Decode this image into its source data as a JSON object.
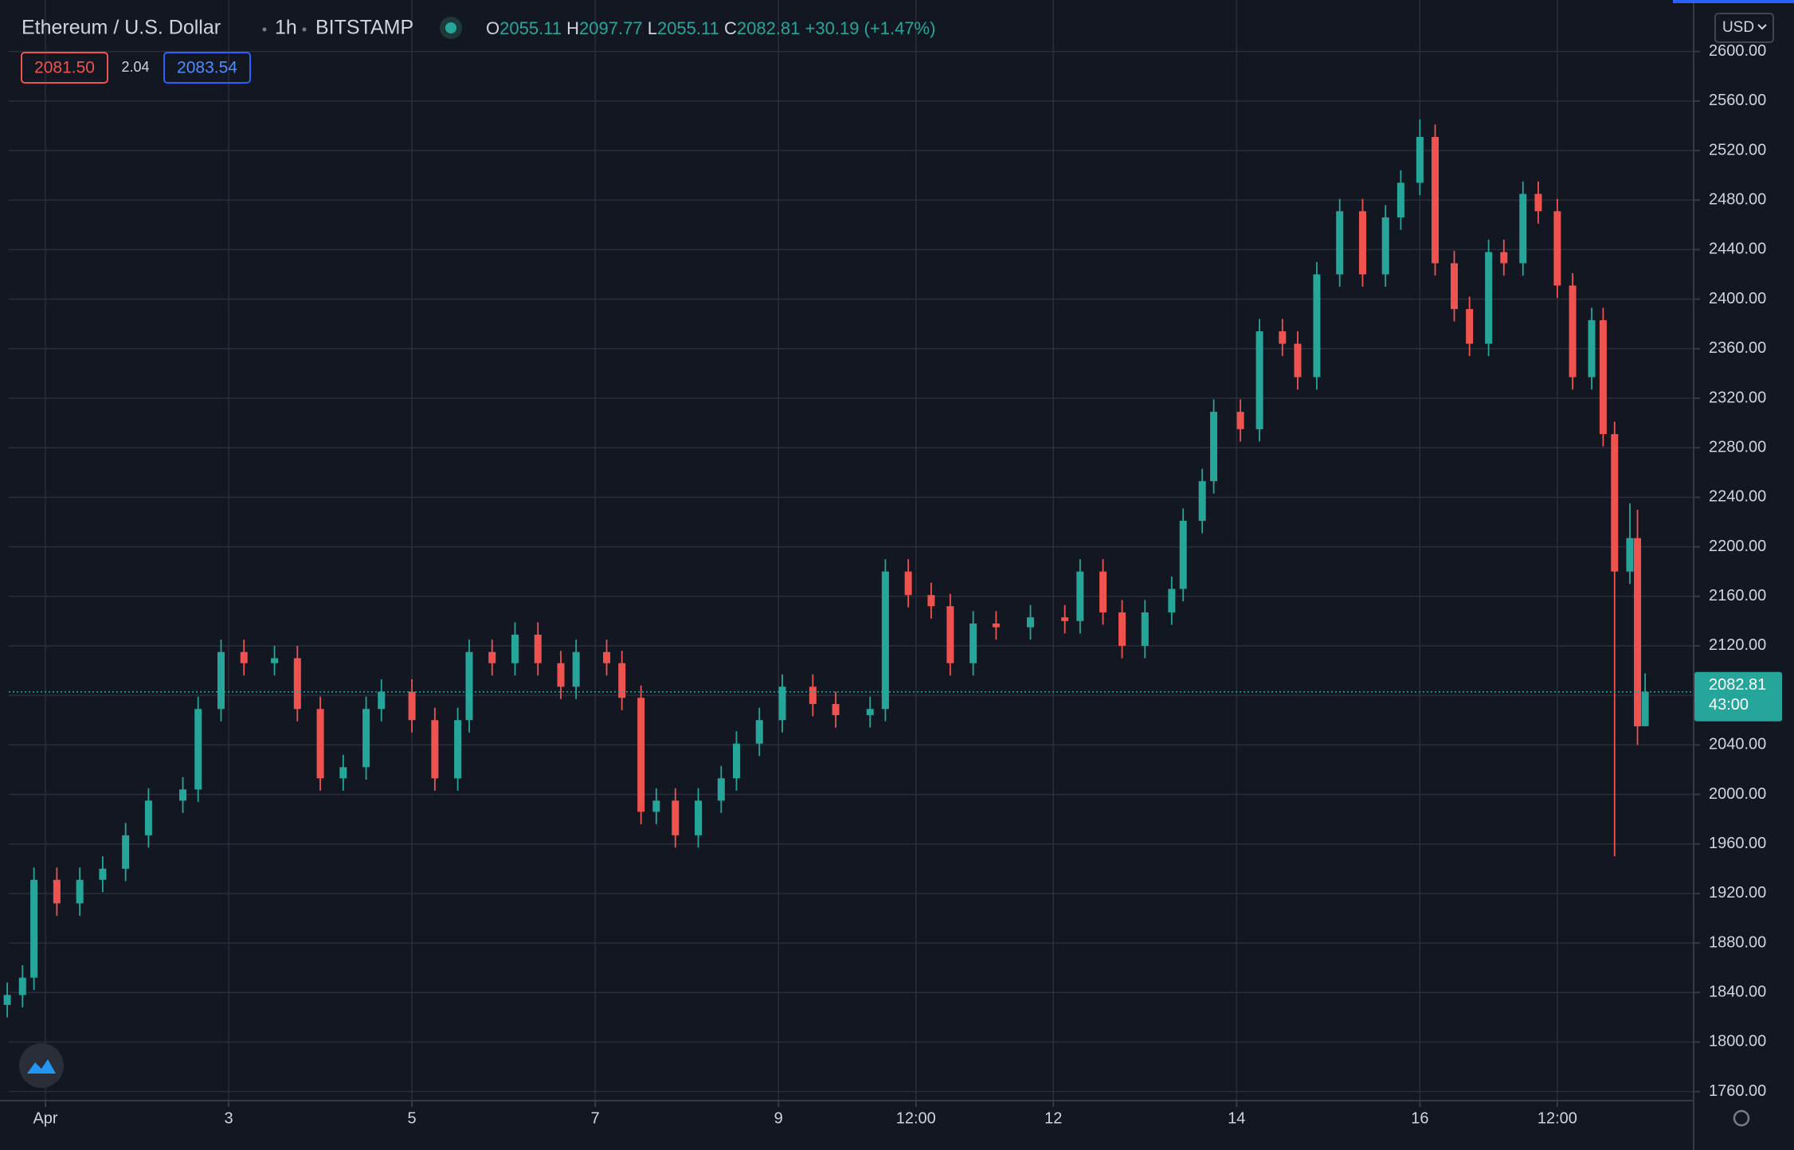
{
  "chart_data": {
    "type": "candlestick",
    "title": "Ethereum / U.S. Dollar",
    "interval": "1h",
    "exchange": "BITSTAMP",
    "ohlc_labels": [
      "O",
      "H",
      "L",
      "C"
    ],
    "change": "+30.19 (+1.47%)",
    "bid": "2081.50",
    "spread": "2.04",
    "ask": "2083.54",
    "countdown": "43:00",
    "currency": "USD",
    "up_color": "#26a69a",
    "down_color": "#ef5350",
    "grid": true,
    "x": [
      -10,
      -6,
      -3,
      3,
      9,
      15,
      21,
      27,
      36,
      40,
      46,
      52,
      60,
      66,
      72,
      78,
      84,
      88,
      96,
      102,
      108,
      111,
      117,
      123,
      129,
      135,
      139,
      147,
      151,
      156,
      160,
      165,
      171,
      177,
      181,
      187,
      193,
      201,
      207,
      216,
      220,
      226,
      232,
      237,
      243,
      249,
      258,
      267,
      271,
      277,
      282,
      288,
      295,
      298,
      303,
      306,
      313,
      318,
      324,
      328,
      333,
      339,
      345,
      351,
      355,
      360,
      364,
      369,
      373,
      378,
      382,
      387,
      391,
      396,
      400,
      405,
      408,
      411,
      415,
      417,
      419
    ],
    "open": [
      1830,
      1838,
      1852,
      1931,
      1912,
      1931,
      1940,
      1967,
      1995,
      2004,
      2069,
      2115,
      2106,
      2110,
      2069,
      2013,
      2022,
      2069,
      2083,
      2060,
      2013,
      2060,
      2115,
      2106,
      2129,
      2106,
      2087,
      2115,
      2106,
      2078,
      1986,
      1995,
      1967,
      1995,
      2013,
      2041,
      2060,
      2087,
      2073,
      2064,
      2069,
      2180,
      2161,
      2152,
      2106,
      2138,
      2135,
      2143,
      2140,
      2180,
      2147,
      2120,
      2147,
      2166,
      2221,
      2253,
      2309,
      2295,
      2374,
      2364,
      2337,
      2420,
      2471,
      2420,
      2466,
      2494,
      2531,
      2429,
      2392,
      2364,
      2438,
      2429,
      2485,
      2471,
      2411,
      2337,
      2383,
      2291,
      2180,
      2207,
      2055.11
    ],
    "high": [
      1848,
      1862,
      1941,
      1941,
      1941,
      1950,
      1977,
      2005,
      2014,
      2079,
      2125,
      2125,
      2120,
      2120,
      2079,
      2032,
      2079,
      2093,
      2093,
      2070,
      2070,
      2125,
      2125,
      2139,
      2139,
      2116,
      2125,
      2125,
      2116,
      2088,
      2005,
      2005,
      2005,
      2023,
      2051,
      2070,
      2097,
      2097,
      2083,
      2079,
      2190,
      2190,
      2171,
      2162,
      2148,
      2148,
      2153,
      2153,
      2190,
      2190,
      2157,
      2157,
      2176,
      2231,
      2263,
      2319,
      2319,
      2384,
      2384,
      2374,
      2430,
      2481,
      2481,
      2476,
      2504,
      2545,
      2541,
      2439,
      2402,
      2448,
      2448,
      2495,
      2495,
      2481,
      2421,
      2393,
      2393,
      2301,
      2235,
      2230,
      2097.77
    ],
    "low": [
      1820,
      1828,
      1842,
      1902,
      1902,
      1921,
      1930,
      1957,
      1985,
      1994,
      2059,
      2096,
      2096,
      2059,
      2003,
      2003,
      2012,
      2059,
      2050,
      2003,
      2003,
      2050,
      2096,
      2096,
      2096,
      2077,
      2077,
      2096,
      2068,
      1976,
      1976,
      1957,
      1957,
      1985,
      2003,
      2031,
      2050,
      2063,
      2054,
      2054,
      2059,
      2151,
      2142,
      2096,
      2096,
      2125,
      2125,
      2130,
      2130,
      2137,
      2110,
      2110,
      2137,
      2156,
      2211,
      2243,
      2285,
      2285,
      2354,
      2327,
      2327,
      2410,
      2410,
      2410,
      2456,
      2484,
      2419,
      2382,
      2354,
      2354,
      2419,
      2419,
      2461,
      2401,
      2327,
      2327,
      2281,
      1950,
      2170,
      2040,
      2055.11
    ],
    "close": [
      1838,
      1852,
      1931,
      1912,
      1931,
      1940,
      1967,
      1995,
      2004,
      2069,
      2115,
      2106,
      2110,
      2069,
      2013,
      2022,
      2069,
      2083,
      2060,
      2013,
      2060,
      2115,
      2106,
      2129,
      2106,
      2087,
      2115,
      2106,
      2078,
      1986,
      1995,
      1967,
      1995,
      2013,
      2041,
      2060,
      2087,
      2073,
      2064,
      2069,
      2180,
      2161,
      2152,
      2106,
      2138,
      2135,
      2143,
      2140,
      2180,
      2147,
      2120,
      2147,
      2166,
      2221,
      2253,
      2309,
      2295,
      2374,
      2364,
      2337,
      2420,
      2471,
      2420,
      2466,
      2494,
      2531,
      2429,
      2392,
      2364,
      2438,
      2429,
      2485,
      2471,
      2411,
      2337,
      2383,
      2291,
      2180,
      2207,
      2055,
      2082.81
    ],
    "xlim": [
      -9.6,
      431.7
    ],
    "xticks": [
      {
        "value": 0,
        "label": "Apr"
      },
      {
        "value": 48,
        "label": "3"
      },
      {
        "value": 96,
        "label": "5"
      },
      {
        "value": 144,
        "label": "7"
      },
      {
        "value": 192,
        "label": "9"
      },
      {
        "value": 228,
        "label": "12:00"
      },
      {
        "value": 264,
        "label": "12"
      },
      {
        "value": 312,
        "label": "14"
      },
      {
        "value": 360,
        "label": "16"
      },
      {
        "value": 396,
        "label": "12:00"
      }
    ],
    "ylim": [
      1752.7,
      2641.6
    ],
    "yticks": [
      {
        "value": 1760,
        "label": "1760.00"
      },
      {
        "value": 1800,
        "label": "1800.00"
      },
      {
        "value": 1840,
        "label": "1840.00"
      },
      {
        "value": 1880,
        "label": "1880.00"
      },
      {
        "value": 1920,
        "label": "1920.00"
      },
      {
        "value": 1960,
        "label": "1960.00"
      },
      {
        "value": 2000,
        "label": "2000.00"
      },
      {
        "value": 2040,
        "label": "2040.00"
      },
      {
        "value": 2080,
        "label": "2080.00"
      },
      {
        "value": 2120,
        "label": "2120.00"
      },
      {
        "value": 2160,
        "label": "2160.00"
      },
      {
        "value": 2200,
        "label": "2200.00"
      },
      {
        "value": 2240,
        "label": "2240.00"
      },
      {
        "value": 2280,
        "label": "2280.00"
      },
      {
        "value": 2320,
        "label": "2320.00"
      },
      {
        "value": 2360,
        "label": "2360.00"
      },
      {
        "value": 2400,
        "label": "2400.00"
      },
      {
        "value": 2440,
        "label": "2440.00"
      },
      {
        "value": 2480,
        "label": "2480.00"
      },
      {
        "value": 2520,
        "label": "2520.00"
      },
      {
        "value": 2560,
        "label": "2560.00"
      },
      {
        "value": 2600,
        "label": "2600.00"
      }
    ]
  }
}
